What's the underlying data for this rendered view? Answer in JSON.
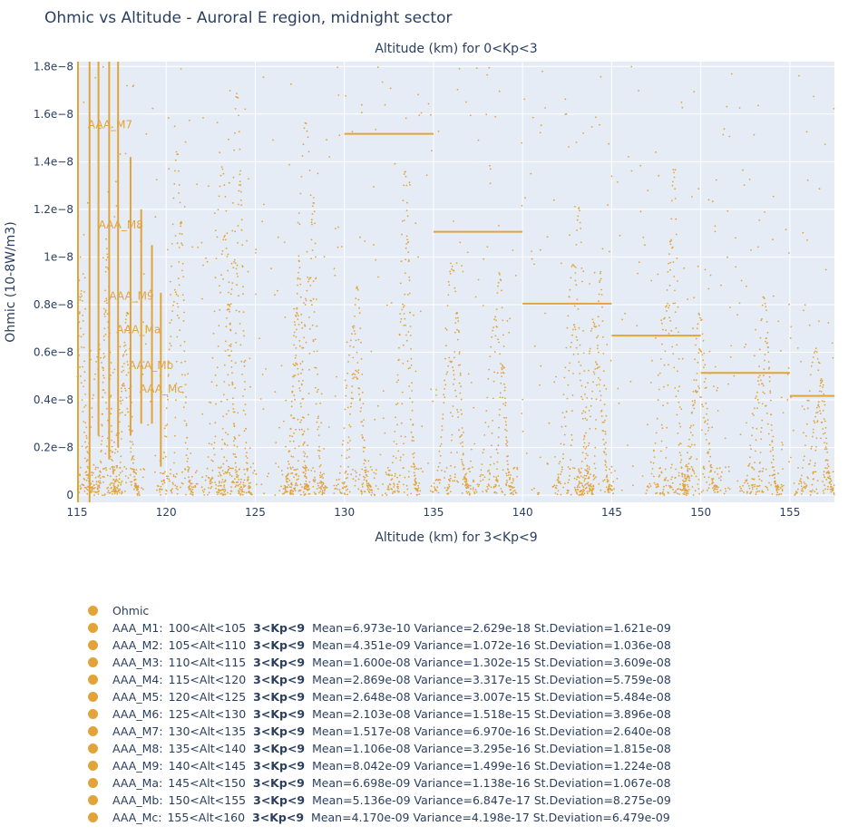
{
  "chart_data": {
    "type": "scatter",
    "title": "Ohmic vs Altitude - Auroral E region, midnight sector",
    "top_axis_title": "Altitude (km) for 0<Kp<3",
    "xlabel": "Altitude (km) for 3<Kp<9",
    "ylabel": "Ohmic (10-8W/m3)",
    "xlim": [
      115,
      157.5
    ],
    "ylim": [
      -3e-10,
      1.82e-08
    ],
    "x_ticks": [
      115,
      120,
      125,
      130,
      135,
      140,
      145,
      150,
      155
    ],
    "y_ticks": [
      {
        "v": 0,
        "label": "0"
      },
      {
        "v": 2e-09,
        "label": "0.2e−8"
      },
      {
        "v": 4e-09,
        "label": "0.4e−8"
      },
      {
        "v": 6e-09,
        "label": "0.6e−8"
      },
      {
        "v": 8e-09,
        "label": "0.8e−8"
      },
      {
        "v": 1e-08,
        "label": "1e−8"
      },
      {
        "v": 1.2e-08,
        "label": "1.2e−8"
      },
      {
        "v": 1.4e-08,
        "label": "1.4e−8"
      },
      {
        "v": 1.6e-08,
        "label": "1.6e−8"
      },
      {
        "v": 1.8e-08,
        "label": "1.8e−8"
      }
    ],
    "grid": true,
    "legend_position": "bottom",
    "color": "#e2a43a",
    "plot_bg": "#e5ecf6",
    "mean_lines": [
      {
        "x0": 130,
        "x1": 135,
        "y": 1.517e-08
      },
      {
        "x0": 135,
        "x1": 140,
        "y": 1.106e-08
      },
      {
        "x0": 140,
        "x1": 145,
        "y": 8.042e-09
      },
      {
        "x0": 145,
        "x1": 150,
        "y": 6.698e-09
      },
      {
        "x0": 150,
        "x1": 155,
        "y": 5.136e-09
      },
      {
        "x0": 155,
        "x1": 157.5,
        "y": 4.17e-09
      }
    ],
    "vertical_lines": [
      {
        "x": 115.05,
        "y0": -3e-10,
        "y1": 1.82e-08
      },
      {
        "x": 115.7,
        "y0": -3e-10,
        "y1": 1.82e-08
      },
      {
        "x": 116.2,
        "y0": 2.5e-09,
        "y1": 1.82e-08
      },
      {
        "x": 116.8,
        "y0": 1.5e-09,
        "y1": 1.82e-08
      },
      {
        "x": 117.3,
        "y0": 2e-09,
        "y1": 1.82e-08
      },
      {
        "x": 118.0,
        "y0": 2.5e-09,
        "y1": 1.42e-08
      },
      {
        "x": 118.6,
        "y0": 3e-09,
        "y1": 1.2e-08
      },
      {
        "x": 119.2,
        "y0": 3e-09,
        "y1": 1.05e-08
      },
      {
        "x": 119.7,
        "y0": 1.2e-09,
        "y1": 8.5e-09
      }
    ],
    "annotations": [
      {
        "text": "AAA_M7",
        "x": 115.6,
        "y": 1.54e-08
      },
      {
        "text": "AAA_M8",
        "x": 116.2,
        "y": 1.12e-08
      },
      {
        "text": "AAA_M9",
        "x": 116.8,
        "y": 8.2e-09
      },
      {
        "text": "AAA_Ma",
        "x": 117.2,
        "y": 6.8e-09
      },
      {
        "text": "AAA_Mb",
        "x": 117.9,
        "y": 5.3e-09
      },
      {
        "text": "AAA_Mc",
        "x": 118.5,
        "y": 4.3e-09
      }
    ],
    "point_density_description_free": true,
    "peaks": [
      {
        "x": 115.6,
        "y": 1.1e-08
      },
      {
        "x": 117.0,
        "y": 1.05e-08
      },
      {
        "x": 118.2,
        "y": 8e-09
      },
      {
        "x": 121.2,
        "y": 1.5e-08
      },
      {
        "x": 123.9,
        "y": 1.42e-08
      },
      {
        "x": 124.5,
        "y": 1.75e-08
      },
      {
        "x": 128.6,
        "y": 1.62e-08
      },
      {
        "x": 127.8,
        "y": 1e-08
      },
      {
        "x": 131.2,
        "y": 9e-09
      },
      {
        "x": 133.9,
        "y": 1.4e-08
      },
      {
        "x": 136.7,
        "y": 1e-08
      },
      {
        "x": 139.2,
        "y": 9.5e-09
      },
      {
        "x": 143.6,
        "y": 1.25e-08
      },
      {
        "x": 144.7,
        "y": 9.5e-09
      },
      {
        "x": 148.9,
        "y": 1.4e-08
      },
      {
        "x": 150.6,
        "y": 7.8e-09
      },
      {
        "x": 154.1,
        "y": 8.5e-09
      },
      {
        "x": 157.2,
        "y": 6.3e-09
      }
    ],
    "series": [
      {
        "name": "Ohmic"
      },
      {
        "name": "AAA_M1:",
        "range": "100<Alt<105",
        "kp": "3<Kp<9",
        "stats": "Mean=6.973e-10  Variance=2.629e-18  St.Deviation=1.621e-09"
      },
      {
        "name": "AAA_M2:",
        "range": "105<Alt<110",
        "kp": "3<Kp<9",
        "stats": "Mean=4.351e-09  Variance=1.072e-16  St.Deviation=1.036e-08"
      },
      {
        "name": "AAA_M3:",
        "range": "110<Alt<115",
        "kp": "3<Kp<9",
        "stats": "Mean=1.600e-08  Variance=1.302e-15  St.Deviation=3.609e-08"
      },
      {
        "name": "AAA_M4:",
        "range": "115<Alt<120",
        "kp": "3<Kp<9",
        "stats": "Mean=2.869e-08  Variance=3.317e-15  St.Deviation=5.759e-08"
      },
      {
        "name": "AAA_M5:",
        "range": "120<Alt<125",
        "kp": "3<Kp<9",
        "stats": "Mean=2.648e-08  Variance=3.007e-15  St.Deviation=5.484e-08"
      },
      {
        "name": "AAA_M6:",
        "range": "125<Alt<130",
        "kp": "3<Kp<9",
        "stats": "Mean=2.103e-08  Variance=1.518e-15  St.Deviation=3.896e-08"
      },
      {
        "name": "AAA_M7:",
        "range": "130<Alt<135",
        "kp": "3<Kp<9",
        "stats": "Mean=1.517e-08  Variance=6.970e-16  St.Deviation=2.640e-08"
      },
      {
        "name": "AAA_M8:",
        "range": "135<Alt<140",
        "kp": "3<Kp<9",
        "stats": "Mean=1.106e-08  Variance=3.295e-16  St.Deviation=1.815e-08"
      },
      {
        "name": "AAA_M9:",
        "range": "140<Alt<145",
        "kp": "3<Kp<9",
        "stats": "Mean=8.042e-09  Variance=1.499e-16  St.Deviation=1.224e-08"
      },
      {
        "name": "AAA_Ma:",
        "range": "145<Alt<150",
        "kp": "3<Kp<9",
        "stats": "Mean=6.698e-09  Variance=1.138e-16  St.Deviation=1.067e-08"
      },
      {
        "name": "AAA_Mb:",
        "range": "150<Alt<155",
        "kp": "3<Kp<9",
        "stats": "Mean=5.136e-09  Variance=6.847e-17  St.Deviation=8.275e-09"
      },
      {
        "name": "AAA_Mc:",
        "range": "155<Alt<160",
        "kp": "3<Kp<9",
        "stats": "Mean=4.170e-09  Variance=4.198e-17  St.Deviation=6.479e-09"
      }
    ]
  }
}
